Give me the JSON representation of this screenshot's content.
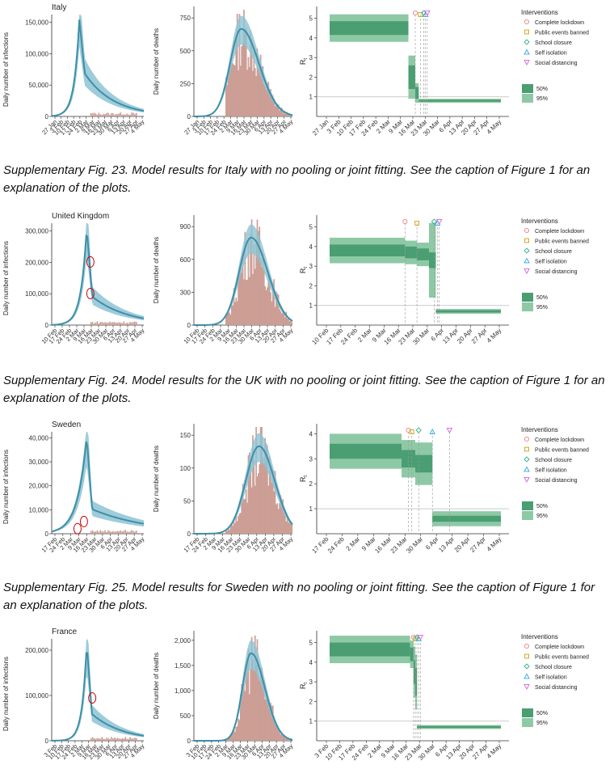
{
  "legend": {
    "title": "Interventions",
    "items": [
      {
        "label": "Complete lockdown",
        "symbol": "circle",
        "color": "#f08080"
      },
      {
        "label": "Public events banned",
        "symbol": "square",
        "color": "#c8a000"
      },
      {
        "label": "School closure",
        "symbol": "diamond",
        "color": "#2fb58a"
      },
      {
        "label": "Self isolation",
        "symbol": "triangle-up",
        "color": "#2aa9e0"
      },
      {
        "label": "Social distancing",
        "symbol": "triangle-down",
        "color": "#d060e0"
      }
    ],
    "ci": [
      {
        "label": "50%",
        "color": "#4a9e72"
      },
      {
        "label": "95%",
        "color": "#8ec9a6"
      }
    ]
  },
  "axis_labels": {
    "infections": "Daily number of infections",
    "deaths": "Daily number of deaths",
    "rt": "R"
  },
  "colors": {
    "model": "#3e8fa8",
    "model_light": "#8dc3d3",
    "bars": "#c99a90",
    "rt_dark": "#4a9e72",
    "rt_light": "#8ec9a6"
  },
  "figures": [
    {
      "country": "Italy",
      "caption": "Supplementary Fig. 23. Model results for Italy with no pooling or joint fitting.  See the caption of Figure 1 for an explanation of the plots.",
      "inf_ticks": [
        "0",
        "50,000",
        "100,000",
        "150,000"
      ],
      "inf_max": 185000,
      "death_ticks": [
        "0",
        "250",
        "500",
        "750"
      ],
      "death_max": 950,
      "date_ticks": [
        "27 Jan",
        "3 Feb",
        "10 Feb",
        "17 Feb",
        "24 Feb",
        "2 Mar",
        "9 Mar",
        "16 Mar",
        "23 Mar",
        "30 Mar",
        "6 Apr",
        "13 Apr",
        "20 Apr",
        "27 Apr",
        "4 May"
      ],
      "rt_ticks": [
        "1",
        "2",
        "3",
        "4",
        "5"
      ],
      "rt_max": 5.6,
      "circles": []
    },
    {
      "country": "United Kingdom",
      "caption": "Supplementary Fig. 24. Model results for the UK with no pooling or joint fitting.  See the caption of Figure 1 for an explanation of the plots.",
      "inf_ticks": [
        "0",
        "100,000",
        "200,000",
        "300,000"
      ],
      "inf_max": 380000,
      "death_ticks": [
        "0",
        "300",
        "600",
        "900"
      ],
      "death_max": 1150,
      "date_ticks": [
        "10 Feb",
        "17 Feb",
        "24 Feb",
        "2 Mar",
        "9 Mar",
        "16 Mar",
        "23 Mar",
        "30 Mar",
        "6 Apr",
        "13 Apr",
        "20 Apr",
        "27 Apr",
        "4 May"
      ],
      "rt_ticks": [
        "1",
        "2",
        "3",
        "4",
        "5"
      ],
      "rt_max": 5.6,
      "circles": [
        [
          0.42,
          0.62
        ],
        [
          0.42,
          0.31
        ]
      ]
    },
    {
      "country": "Sweden",
      "caption": "Supplementary Fig. 25. Model results for Sweden with no pooling or joint fitting.  See the caption of Figure 1 for an explanation of the plots.",
      "inf_ticks": [
        "0",
        "10,000",
        "20,000",
        "30,000",
        "40,000"
      ],
      "inf_max": 48000,
      "death_ticks": [
        "0",
        "50",
        "100",
        "150"
      ],
      "death_max": 190,
      "date_ticks": [
        "17 Feb",
        "24 Feb",
        "2 Mar",
        "9 Mar",
        "16 Mar",
        "23 Mar",
        "30 Mar",
        "6 Apr",
        "13 Apr",
        "20 Apr",
        "27 Apr",
        "4 May"
      ],
      "rt_ticks": [
        "1",
        "2",
        "3",
        "4"
      ],
      "rt_max": 4.4,
      "circles": [
        [
          0.28,
          0.05
        ],
        [
          0.35,
          0.12
        ]
      ]
    },
    {
      "country": "France",
      "caption": "",
      "inf_ticks": [
        "0",
        "100,000",
        "200,000"
      ],
      "inf_max": 280000,
      "death_ticks": [
        "0",
        "500",
        "1,000",
        "1,500",
        "2,000"
      ],
      "death_max": 2000,
      "date_ticks": [
        "3 Feb",
        "10 Feb",
        "17 Feb",
        "24 Feb",
        "2 Mar",
        "9 Mar",
        "16 Mar",
        "23 Mar",
        "30 Mar",
        "6 Apr",
        "13 Apr",
        "20 Apr",
        "27 Apr",
        "4 May"
      ],
      "rt_ticks": [
        "1",
        "2",
        "3",
        "4",
        "5"
      ],
      "rt_max": 5.6,
      "circles": [
        [
          0.44,
          0.42
        ]
      ]
    }
  ]
}
